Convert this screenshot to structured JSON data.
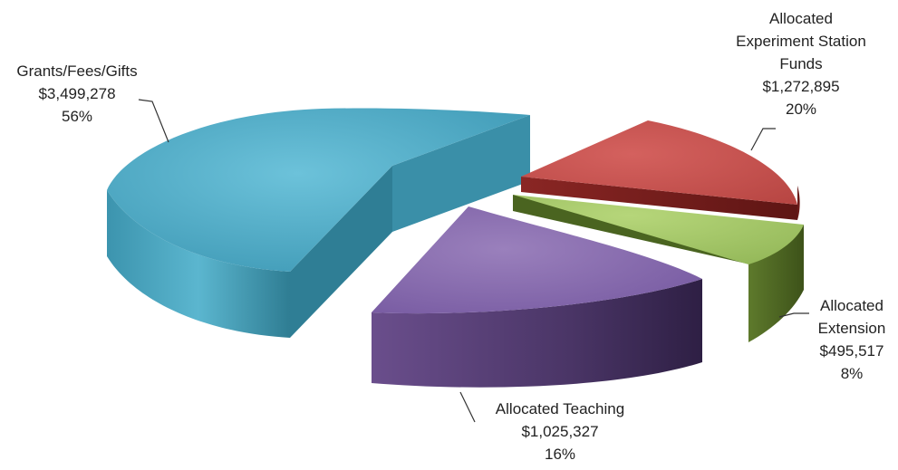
{
  "chart_data": {
    "type": "pie",
    "style": "exploded 3d",
    "slices": [
      {
        "key": "grants",
        "label_lines": [
          "Grants/Fees/Gifts"
        ],
        "amount_text": "$3,499,278",
        "value": 3499278,
        "percent_text": "56%",
        "percent": 56,
        "color": "#4aa8c4"
      },
      {
        "key": "station",
        "label_lines": [
          "Allocated",
          "Experiment Station",
          "Funds"
        ],
        "amount_text": "$1,272,895",
        "value": 1272895,
        "percent_text": "20%",
        "percent": 20,
        "color": "#c0504d"
      },
      {
        "key": "extension",
        "label_lines": [
          "Allocated",
          "Extension"
        ],
        "amount_text": "$495,517",
        "value": 495517,
        "percent_text": "8%",
        "percent": 8,
        "color": "#9bbb59"
      },
      {
        "key": "teaching",
        "label_lines": [
          "Allocated Teaching"
        ],
        "amount_text": "$1,025,327",
        "value": 1025327,
        "percent_text": "16%",
        "percent": 16,
        "color": "#8064a2"
      }
    ]
  }
}
